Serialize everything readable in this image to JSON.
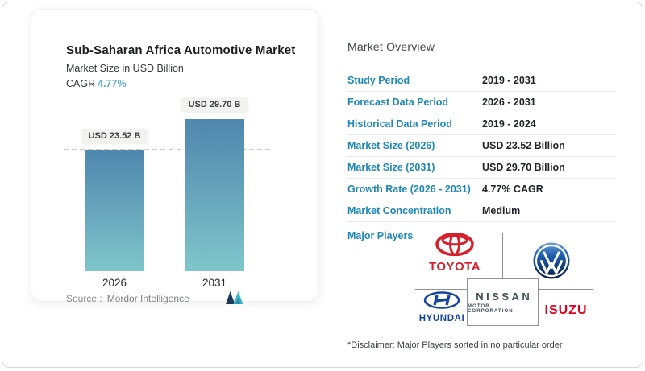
{
  "chart_data": {
    "type": "bar",
    "title": "Sub-Saharan Africa Automotive Market",
    "subtitle": "Market Size in USD Billion",
    "categories": [
      "2026",
      "2031"
    ],
    "values": [
      23.52,
      29.7
    ],
    "bar_labels": [
      "USD 23.52 B",
      "USD 29.70 B"
    ],
    "unit": "USD Billion",
    "ylim": [
      0,
      29.7
    ],
    "reference_line_at": 23.52,
    "grid": "off",
    "cagr_label": "CAGR",
    "cagr_value": "4.77%",
    "source_label": "Source :",
    "source_value": "Mordor Intelligence"
  },
  "colors": {
    "accent_blue": "#1e88b7",
    "cagr_teal": "#5fb0ca",
    "bar_gradient_top": "#4f87ae",
    "bar_gradient_bottom": "#7fc6cb",
    "toyota_red": "#d6202c",
    "hyundai_blue": "#15459c",
    "nissan_slate": "#3e4d5a",
    "isuzu_red": "#e0001d",
    "vw_blue": "#0b3f7e"
  },
  "overview": {
    "title": "Market Overview",
    "rows": [
      {
        "label": "Study Period",
        "value": "2019 - 2031"
      },
      {
        "label": "Forecast Data Period",
        "value": "2026 - 2031"
      },
      {
        "label": "Historical Data Period",
        "value": "2019 - 2024"
      },
      {
        "label": "Market Size (2026)",
        "value": "USD 23.52 Billion"
      },
      {
        "label": "Market Size (2031)",
        "value": "USD 29.70 Billion"
      },
      {
        "label": "Growth Rate (2026 - 2031)",
        "value": "4.77% CAGR"
      },
      {
        "label": "Market Concentration",
        "value": "Medium"
      }
    ],
    "major_players_label": "Major Players",
    "players": {
      "toyota": {
        "wordmark": "TOYOTA"
      },
      "volkswagen": {
        "name": "Volkswagen"
      },
      "hyundai": {
        "wordmark": "HYUNDAI"
      },
      "nissan": {
        "line1": "NISSAN",
        "line2": "MOTOR CORPORATION"
      },
      "isuzu": {
        "wordmark": "ISUZU"
      }
    },
    "disclaimer": "*Disclaimer: Major Players sorted in no particular order"
  }
}
